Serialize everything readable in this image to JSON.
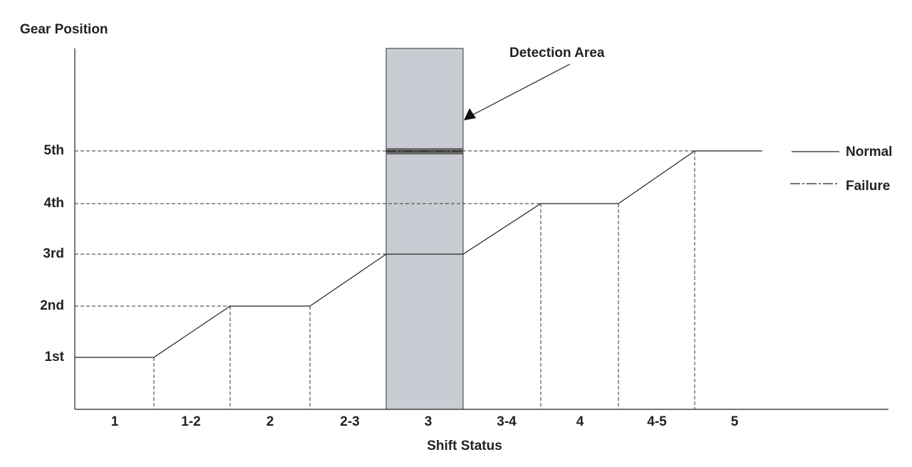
{
  "y_axis_label": "Gear Position",
  "x_axis_label": "Shift Status",
  "annotation": "Detection Area",
  "y_labels": [
    "1st",
    "2nd",
    "3rd",
    "4th",
    "5th"
  ],
  "x_labels": [
    "1",
    "1-2",
    "2",
    "2-3",
    "3",
    "3-4",
    "4",
    "4-5",
    "5"
  ],
  "legend": [
    "Normal",
    "Failure"
  ]
}
